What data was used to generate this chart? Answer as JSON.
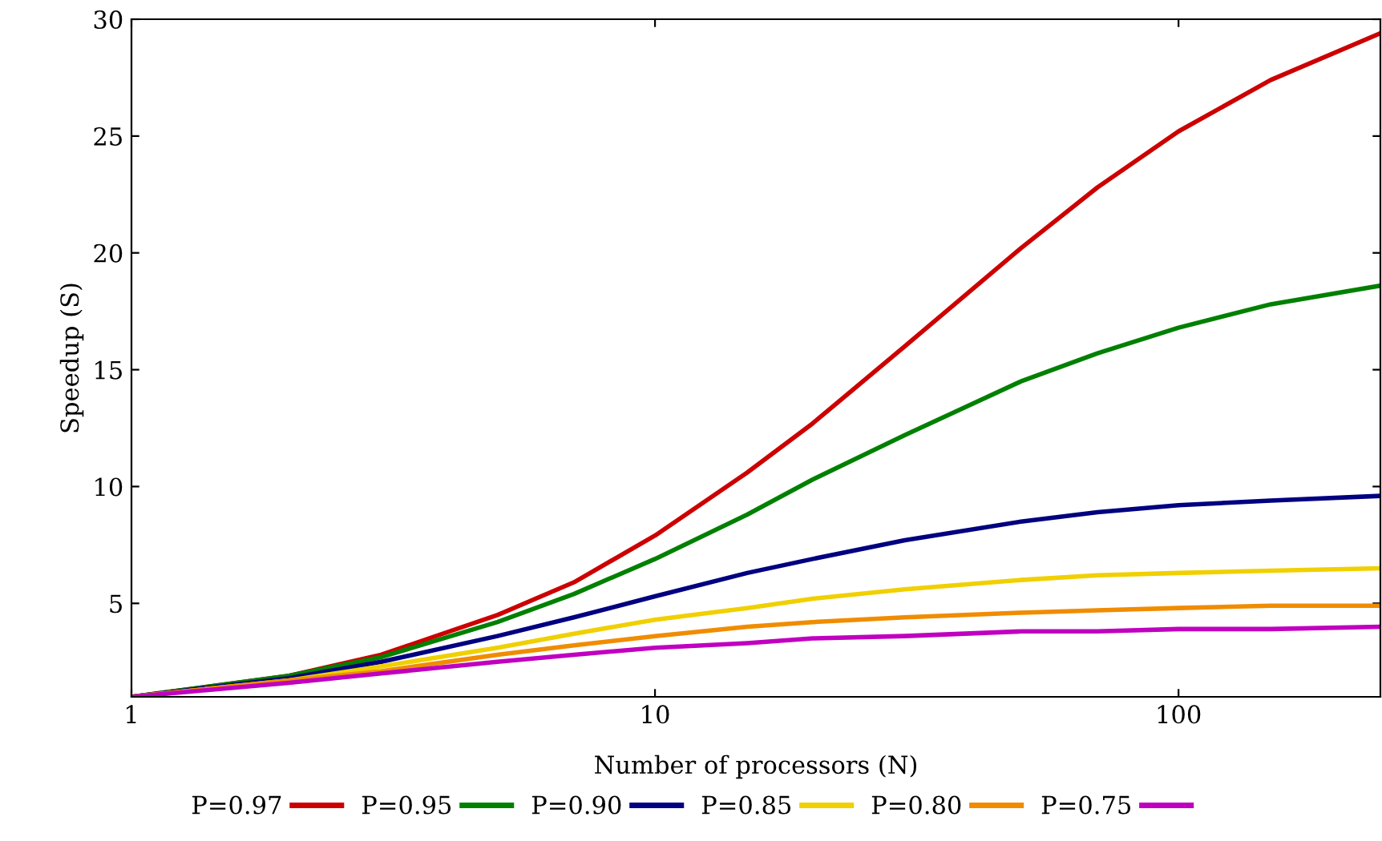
{
  "chart_data": {
    "type": "line",
    "xlabel": "Number of processors (N)",
    "ylabel": "Speedup (S)",
    "x": [
      1,
      2,
      3,
      5,
      7,
      10,
      15,
      20,
      30,
      50,
      70,
      100,
      150,
      243
    ],
    "series": [
      {
        "name": "P=0.97",
        "color": "#cc0000",
        "values": [
          1,
          1.9,
          2.8,
          4.5,
          5.9,
          7.9,
          10.6,
          12.7,
          16.0,
          20.2,
          22.8,
          25.2,
          27.4,
          29.4
        ]
      },
      {
        "name": "P=0.95",
        "color": "#008000",
        "values": [
          1,
          1.9,
          2.7,
          4.2,
          5.4,
          6.9,
          8.8,
          10.3,
          12.2,
          14.5,
          15.7,
          16.8,
          17.8,
          18.6
        ]
      },
      {
        "name": "P=0.90",
        "color": "#000080",
        "values": [
          1,
          1.8,
          2.5,
          3.6,
          4.4,
          5.3,
          6.3,
          6.9,
          7.7,
          8.5,
          8.9,
          9.2,
          9.4,
          9.6
        ]
      },
      {
        "name": "P=0.85",
        "color": "#f0d000",
        "values": [
          1,
          1.7,
          2.3,
          3.1,
          3.7,
          4.3,
          4.8,
          5.2,
          5.6,
          6.0,
          6.2,
          6.3,
          6.4,
          6.5
        ]
      },
      {
        "name": "P=0.80",
        "color": "#f08c00",
        "values": [
          1,
          1.7,
          2.1,
          2.8,
          3.2,
          3.6,
          4.0,
          4.2,
          4.4,
          4.6,
          4.7,
          4.8,
          4.9,
          4.9
        ]
      },
      {
        "name": "P=0.75",
        "color": "#c000c0",
        "values": [
          1,
          1.6,
          2.0,
          2.5,
          2.8,
          3.1,
          3.3,
          3.5,
          3.6,
          3.8,
          3.8,
          3.9,
          3.9,
          4.0
        ]
      }
    ],
    "log": "x",
    "xlim": [
      1,
      243
    ],
    "xticks": [
      1,
      10,
      100
    ],
    "ylim": [
      1,
      30
    ],
    "yticks": [
      5,
      10,
      15,
      20,
      25,
      30
    ],
    "grid": false,
    "legend": "bottom",
    "marker": "none",
    "line_style": "solid"
  }
}
